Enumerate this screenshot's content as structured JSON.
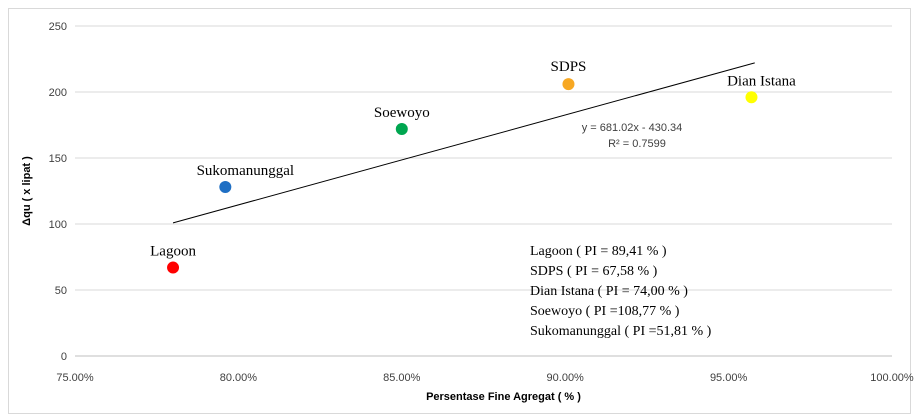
{
  "chart_data": {
    "type": "scatter",
    "xlabel": "Persentase Fine Agregat ( % )",
    "ylabel": "Δqu ( x lipat )",
    "xlim": [
      0.75,
      1.0
    ],
    "ylim": [
      0,
      250
    ],
    "x_ticks": [
      "75.00%",
      "80.00%",
      "85.00%",
      "90.00%",
      "95.00%",
      "100.00%"
    ],
    "y_ticks": [
      "0",
      "50",
      "100",
      "150",
      "200",
      "250"
    ],
    "grid": "horizontal",
    "points": [
      {
        "label": "Lagoon",
        "x": 0.78,
        "y": 67,
        "color": "#ff0000"
      },
      {
        "label": "Sukomanunggal",
        "x": 0.796,
        "y": 128,
        "color": "#1f6fc4"
      },
      {
        "label": "Soewoyo",
        "x": 0.85,
        "y": 172,
        "color": "#00a650"
      },
      {
        "label": "SDPS",
        "x": 0.901,
        "y": 206,
        "color": "#f7a823"
      },
      {
        "label": "Dian Istana",
        "x": 0.957,
        "y": 196,
        "color": "#ffff00"
      }
    ],
    "trendline": {
      "x": [
        0.78,
        0.958
      ],
      "equation": "y = 681.02x - 430.34",
      "r2": "R² = 0.7599"
    },
    "annotations": [
      "Lagoon ( PI = 89,41 % )",
      "SDPS ( PI = 67,58 % )",
      "Dian Istana ( PI = 74,00 % )",
      "Soewoyo ( PI =108,77 %  )",
      "Sukomanunggal ( PI =51,81 % )"
    ]
  }
}
